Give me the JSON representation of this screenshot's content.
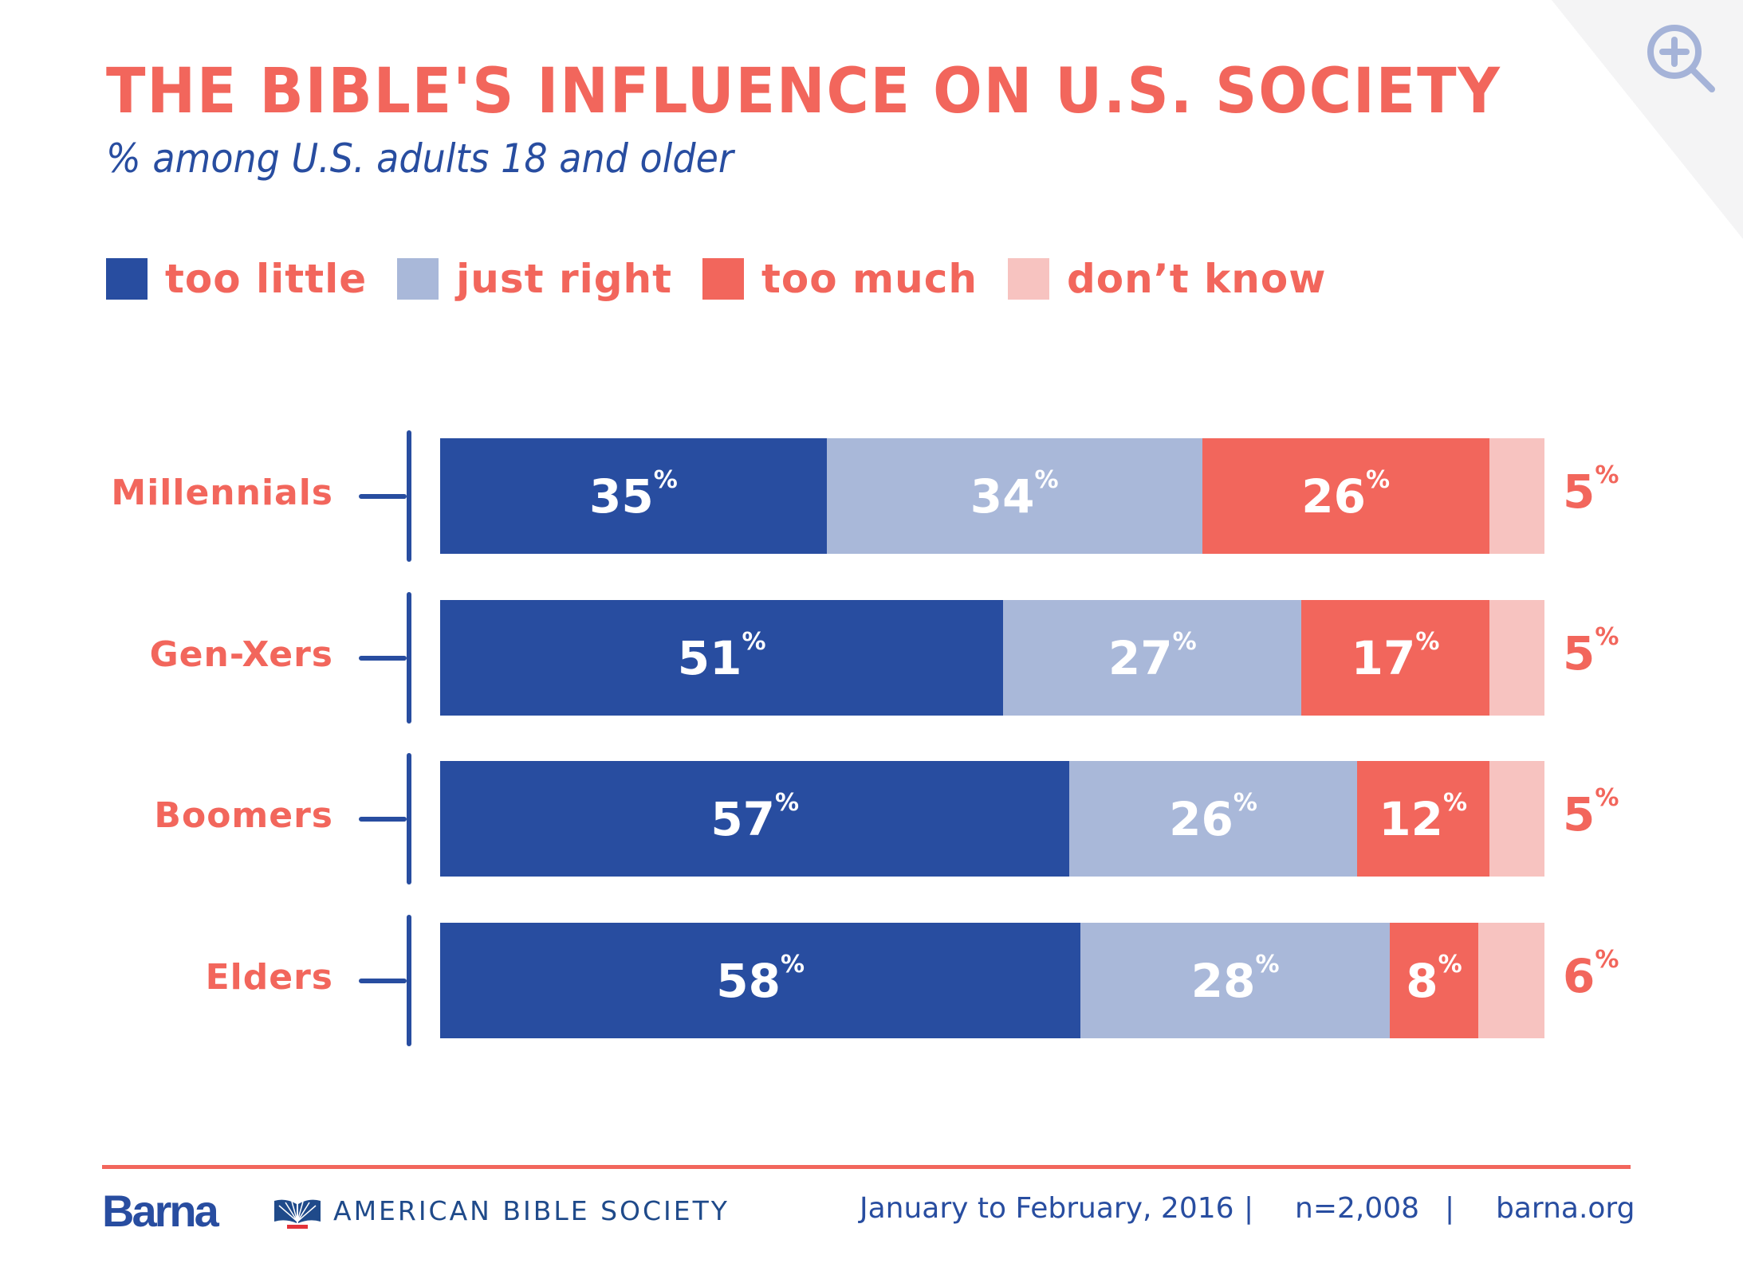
{
  "header": {
    "title": "THE BIBLE'S INFLUENCE ON U.S. SOCIETY",
    "subtitle": "% among U.S. adults 18 and older",
    "zoom_icon": "zoom-in-icon"
  },
  "colors": {
    "too_little": "#284da0",
    "just_right": "#a9b8d9",
    "too_much": "#f2665c",
    "dont_know": "#f7c3c0",
    "accent": "#f2665c",
    "brand_blue": "#284da0"
  },
  "chart_data": {
    "type": "bar",
    "orientation": "horizontal",
    "stacked": true,
    "title": "THE BIBLE'S INFLUENCE ON U.S. SOCIETY",
    "subtitle": "% among U.S. adults 18 and older",
    "xlabel": "",
    "ylabel": "",
    "xlim": [
      0,
      100
    ],
    "grid": false,
    "legend_position": "top-left",
    "categories": [
      "Millennials",
      "Gen-Xers",
      "Boomers",
      "Elders"
    ],
    "series": [
      {
        "name": "too little",
        "values": [
          35,
          51,
          57,
          58
        ]
      },
      {
        "name": "just right",
        "values": [
          34,
          27,
          26,
          28
        ]
      },
      {
        "name": "too much",
        "values": [
          26,
          17,
          12,
          8
        ]
      },
      {
        "name": "don’t know",
        "values": [
          5,
          5,
          5,
          6
        ]
      }
    ],
    "value_suffix": "%"
  },
  "footer": {
    "barna_logo": "Barna",
    "partner": "AMERICAN BIBLE SOCIETY",
    "date": "January to February, 2016",
    "separator": "|",
    "sample": "n=2,008",
    "website": "barna.org"
  }
}
